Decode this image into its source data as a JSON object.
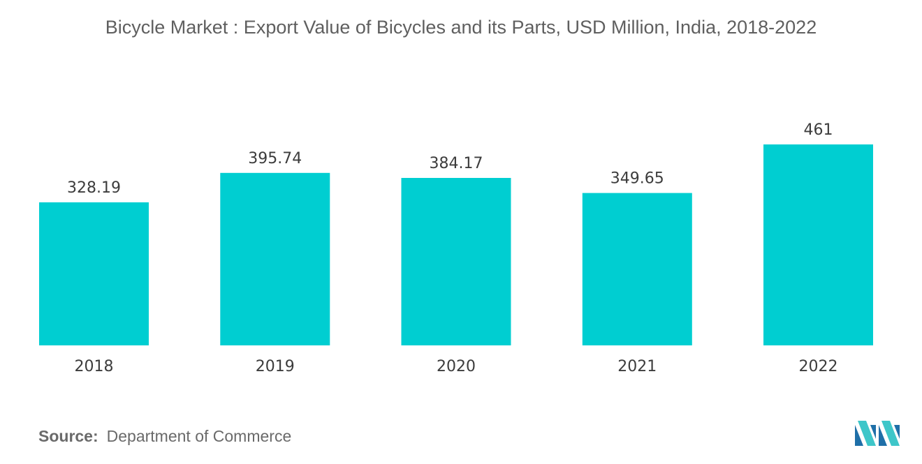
{
  "chart_data": {
    "type": "bar",
    "title": "Bicycle Market : Export Value of Bicycles and its Parts, USD Million, India, 2018-2022",
    "categories": [
      "2018",
      "2019",
      "2020",
      "2021",
      "2022"
    ],
    "values": [
      328.19,
      395.74,
      384.17,
      349.65,
      461
    ],
    "value_labels": [
      "328.19",
      "395.74",
      "384.17",
      "349.65",
      "461"
    ],
    "xlabel": "",
    "ylabel": "",
    "ylim": [
      0,
      461
    ],
    "grid": false,
    "legend": "none",
    "bar_color": "#00ced1"
  },
  "source": {
    "label": "Source:",
    "text": "Department of Commerce"
  },
  "logo": {
    "icon": "mordor-intelligence-logo-icon",
    "colors": [
      "#1f6fa8",
      "#3ec6c9"
    ]
  }
}
